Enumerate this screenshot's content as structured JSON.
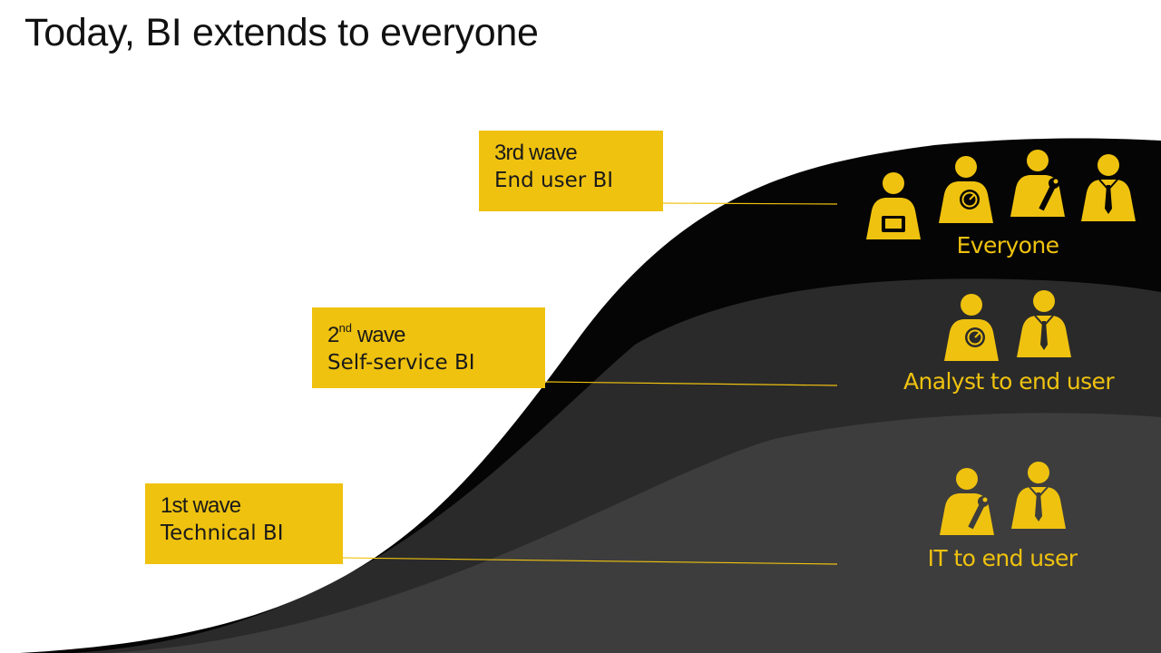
{
  "slide": {
    "title": "Today, BI extends to everyone"
  },
  "waves": [
    {
      "title": "1st wave",
      "ordinal": "",
      "subtitle": "Technical BI",
      "audience": "IT to end user",
      "icons": [
        "wrench-person-icon",
        "tie-person-icon"
      ]
    },
    {
      "title": "2",
      "ordinal": "nd",
      "title_rest": " wave",
      "subtitle": "Self-service BI",
      "audience": "Analyst to end user",
      "icons": [
        "gauge-person-icon",
        "tie-person-icon"
      ]
    },
    {
      "title": "3rd wave",
      "ordinal": "",
      "subtitle": "End user BI",
      "audience": "Everyone",
      "icons": [
        "tablet-person-icon",
        "gauge-person-icon",
        "wrench-person-icon",
        "tie-person-icon"
      ]
    }
  ],
  "colors": {
    "accent": "#EFC20F",
    "band_top": "#050505",
    "band_middle": "#2a2a2a",
    "band_bottom": "#3d3d3d",
    "text_dark": "#111111"
  }
}
